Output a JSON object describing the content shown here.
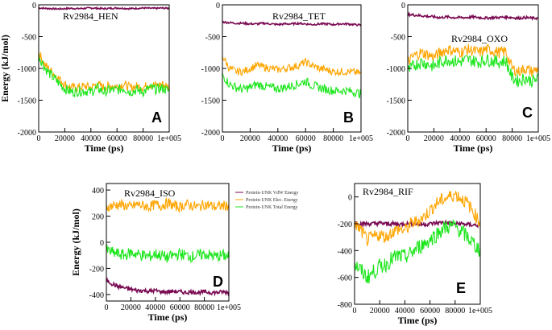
{
  "colors": {
    "vdw": "#7a0b52",
    "elec": "#ffa500",
    "total": "#1ee61e"
  },
  "legend": {
    "vdw": "Protein-UNK VdW Energy",
    "elec": "Protein-UNK Elec. Energy",
    "total": "Protein-UNK Total Energy"
  },
  "chart_data": [
    {
      "id": "A",
      "type": "line",
      "title": "Rv2984_HEN",
      "panel_label": "A",
      "xlabel": "Time (ps)",
      "ylabel": "Energy (kJ/mol)",
      "xlim": [
        0,
        100000
      ],
      "ylim": [
        -2000,
        0
      ],
      "xticks": [
        "0",
        "20000",
        "40000",
        "60000",
        "80000",
        "1e+005"
      ],
      "yticks": [
        "0",
        "-500",
        "-1000",
        "-1500",
        "-2000"
      ],
      "ytick_values": [
        0,
        -500,
        -1000,
        -1500,
        -2000
      ],
      "x": [
        0,
        5000,
        10000,
        15000,
        20000,
        25000,
        30000,
        35000,
        40000,
        45000,
        50000,
        55000,
        60000,
        65000,
        70000,
        75000,
        80000,
        85000,
        90000,
        95000,
        100000
      ],
      "series": [
        {
          "name": "vdw",
          "values": [
            -50,
            -55,
            -60,
            -65,
            -60,
            -55,
            -60,
            -55,
            -50,
            -55,
            -60,
            -55,
            -50,
            -55,
            -60,
            -55,
            -50,
            -55,
            -55,
            -50,
            -55
          ],
          "noise": 12
        },
        {
          "name": "elec",
          "values": [
            -750,
            -950,
            -1050,
            -1150,
            -1250,
            -1300,
            -1300,
            -1280,
            -1300,
            -1250,
            -1300,
            -1270,
            -1280,
            -1250,
            -1300,
            -1280,
            -1300,
            -1250,
            -1270,
            -1250,
            -1300
          ],
          "noise": 70
        },
        {
          "name": "total",
          "values": [
            -800,
            -1000,
            -1120,
            -1220,
            -1320,
            -1370,
            -1360,
            -1350,
            -1370,
            -1310,
            -1370,
            -1340,
            -1340,
            -1310,
            -1370,
            -1340,
            -1370,
            -1310,
            -1330,
            -1310,
            -1360
          ],
          "noise": 80
        }
      ]
    },
    {
      "id": "B",
      "type": "line",
      "title": "Rv2984_TET",
      "panel_label": "B",
      "xlabel": "Time (ps)",
      "ylabel": "",
      "xlim": [
        0,
        100000
      ],
      "ylim": [
        -2000,
        0
      ],
      "xticks": [
        "0",
        "20000",
        "40000",
        "60000",
        "80000",
        "1e+005"
      ],
      "yticks": [
        "0",
        "-500",
        "-1000",
        "-1500",
        "-2000"
      ],
      "ytick_values": [
        0,
        -500,
        -1000,
        -1500,
        -2000
      ],
      "x": [
        0,
        5000,
        10000,
        15000,
        20000,
        25000,
        30000,
        35000,
        40000,
        45000,
        50000,
        55000,
        60000,
        65000,
        70000,
        75000,
        80000,
        85000,
        90000,
        95000,
        100000
      ],
      "series": [
        {
          "name": "vdw",
          "values": [
            -270,
            -280,
            -290,
            -290,
            -300,
            -300,
            -290,
            -300,
            -310,
            -300,
            -300,
            -290,
            -300,
            -310,
            -300,
            -300,
            -310,
            -300,
            -300,
            -310,
            -320
          ],
          "noise": 15
        },
        {
          "name": "elec",
          "values": [
            -800,
            -1000,
            -1050,
            -1050,
            -1000,
            -950,
            -980,
            -1000,
            -1020,
            -1000,
            -980,
            -950,
            -900,
            -960,
            -1000,
            -1020,
            -1050,
            -1050,
            -1050,
            -1060,
            -1080
          ],
          "noise": 60
        },
        {
          "name": "total",
          "values": [
            -1100,
            -1250,
            -1300,
            -1330,
            -1300,
            -1250,
            -1280,
            -1300,
            -1320,
            -1300,
            -1270,
            -1240,
            -1200,
            -1270,
            -1300,
            -1330,
            -1350,
            -1350,
            -1350,
            -1370,
            -1400
          ],
          "noise": 70
        }
      ]
    },
    {
      "id": "C",
      "type": "line",
      "title": "Rv2984_OXO",
      "panel_label": "C",
      "xlabel": "Time (ps)",
      "ylabel": "",
      "xlim": [
        0,
        100000
      ],
      "ylim": [
        -2000,
        0
      ],
      "xticks": [
        "0",
        "20000",
        "40000",
        "60000",
        "80000",
        "1e+005"
      ],
      "yticks": [
        "0",
        "-500",
        "-1000",
        "-1500",
        "-2000"
      ],
      "ytick_values": [
        0,
        -500,
        -1000,
        -1500,
        -2000
      ],
      "x": [
        0,
        5000,
        10000,
        15000,
        20000,
        25000,
        30000,
        35000,
        40000,
        45000,
        50000,
        55000,
        60000,
        65000,
        70000,
        75000,
        80000,
        85000,
        90000,
        95000,
        100000
      ],
      "series": [
        {
          "name": "vdw",
          "values": [
            -150,
            -160,
            -170,
            -180,
            -190,
            -200,
            -190,
            -200,
            -200,
            -200,
            -190,
            -200,
            -210,
            -200,
            -200,
            -190,
            -200,
            -210,
            -200,
            -210,
            -210
          ],
          "noise": 20
        },
        {
          "name": "elec",
          "values": [
            -900,
            -800,
            -750,
            -780,
            -820,
            -750,
            -700,
            -720,
            -750,
            -700,
            -720,
            -750,
            -700,
            -720,
            -750,
            -730,
            -1000,
            -1050,
            -1000,
            -1050,
            -1000
          ],
          "noise": 90
        },
        {
          "name": "total",
          "values": [
            -1050,
            -950,
            -900,
            -930,
            -970,
            -900,
            -860,
            -880,
            -900,
            -860,
            -880,
            -900,
            -860,
            -880,
            -900,
            -880,
            -1150,
            -1200,
            -1150,
            -1200,
            -1170
          ],
          "noise": 100
        }
      ]
    },
    {
      "id": "D",
      "type": "line",
      "title": "Rv2984_ISO",
      "panel_label": "D",
      "xlabel": "Time (ps)",
      "ylabel": "Energy (kJ/mol)",
      "xlim": [
        0,
        100000
      ],
      "ylim": [
        -450,
        450
      ],
      "xticks": [
        "0",
        "20000",
        "40000",
        "60000",
        "80000",
        "1e+005"
      ],
      "yticks": [
        "400",
        "200",
        "0",
        "-200",
        "-400"
      ],
      "ytick_values": [
        400,
        200,
        0,
        -200,
        -400
      ],
      "x": [
        0,
        5000,
        10000,
        15000,
        20000,
        25000,
        30000,
        35000,
        40000,
        45000,
        50000,
        55000,
        60000,
        65000,
        70000,
        75000,
        80000,
        85000,
        90000,
        95000,
        100000
      ],
      "series": [
        {
          "name": "elec",
          "values": [
            270,
            280,
            290,
            280,
            270,
            290,
            280,
            270,
            290,
            280,
            300,
            280,
            270,
            290,
            280,
            270,
            290,
            280,
            270,
            280,
            280
          ],
          "noise": 40
        },
        {
          "name": "total",
          "values": [
            -60,
            -80,
            -90,
            -100,
            -80,
            -90,
            -100,
            -110,
            -90,
            -100,
            -120,
            -100,
            -90,
            -100,
            -110,
            -100,
            -90,
            -100,
            -110,
            -100,
            -110
          ],
          "noise": 45
        },
        {
          "name": "vdw",
          "values": [
            -290,
            -320,
            -340,
            -350,
            -360,
            -370,
            -370,
            -375,
            -370,
            -380,
            -380,
            -375,
            -380,
            -385,
            -380,
            -385,
            -380,
            -385,
            -385,
            -380,
            -385
          ],
          "noise": 15
        }
      ]
    },
    {
      "id": "E",
      "type": "line",
      "title": "Rv2984_RIF",
      "panel_label": "E",
      "xlabel": "Time (ps)",
      "ylabel": "",
      "xlim": [
        0,
        100000
      ],
      "ylim": [
        -800,
        100
      ],
      "xticks": [
        "0",
        "20000",
        "40000",
        "60000",
        "80000",
        "1e+005"
      ],
      "yticks": [
        "0",
        "-200",
        "-400",
        "-600",
        "-800"
      ],
      "ytick_values": [
        0,
        -200,
        -400,
        -600,
        -800
      ],
      "x": [
        0,
        5000,
        10000,
        15000,
        20000,
        25000,
        30000,
        35000,
        40000,
        45000,
        50000,
        55000,
        60000,
        65000,
        70000,
        75000,
        80000,
        85000,
        90000,
        95000,
        100000
      ],
      "series": [
        {
          "name": "vdw",
          "values": [
            -190,
            -200,
            -200,
            -200,
            -195,
            -200,
            -200,
            -205,
            -200,
            -200,
            -200,
            -205,
            -200,
            -195,
            -190,
            -195,
            -200,
            -200,
            -205,
            -210,
            -210
          ],
          "noise": 15
        },
        {
          "name": "elec",
          "values": [
            -200,
            -250,
            -320,
            -300,
            -280,
            -300,
            -260,
            -240,
            -250,
            -200,
            -180,
            -150,
            -100,
            -50,
            -20,
            0,
            20,
            -10,
            -50,
            -120,
            -200
          ],
          "noise": 50
        },
        {
          "name": "total",
          "values": [
            -500,
            -550,
            -600,
            -560,
            -520,
            -500,
            -460,
            -440,
            -450,
            -420,
            -380,
            -350,
            -320,
            -280,
            -240,
            -220,
            -220,
            -260,
            -300,
            -350,
            -400
          ],
          "noise": 60
        }
      ]
    }
  ]
}
